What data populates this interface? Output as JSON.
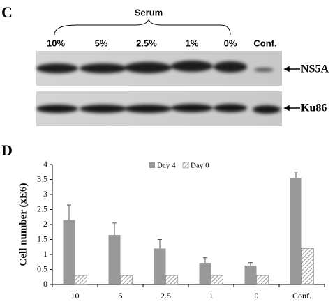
{
  "panel_c": {
    "label": "C",
    "group_label": "Serum",
    "lanes": [
      "10%",
      "5%",
      "2.5%",
      "1%",
      "0%",
      "Conf."
    ],
    "blots": [
      {
        "label": "NS5A"
      },
      {
        "label": "Ku86"
      }
    ]
  },
  "chart_data": {
    "type": "bar",
    "panel_label": "D",
    "ylabel": "Cell number (xE6)",
    "categories": [
      "10",
      "5",
      "2.5",
      "1",
      "0",
      "Conf."
    ],
    "series": [
      {
        "name": "Day 4",
        "color": "#999999",
        "values": [
          2.15,
          1.65,
          1.2,
          0.72,
          0.63,
          3.55
        ],
        "errors": [
          0.5,
          0.4,
          0.3,
          0.17,
          0.1,
          0.2
        ]
      },
      {
        "name": "Day 0",
        "color": "#808080",
        "hatch": true,
        "values": [
          0.3,
          0.3,
          0.3,
          0.3,
          0.3,
          1.2
        ]
      }
    ],
    "ylim": [
      0,
      4
    ],
    "yticks": [
      0,
      0.5,
      1,
      1.5,
      2,
      2.5,
      3,
      3.5,
      4
    ],
    "grid": false,
    "legend": "top"
  }
}
